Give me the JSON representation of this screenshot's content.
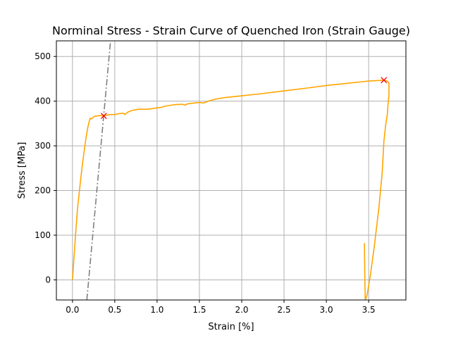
{
  "chart_data": {
    "type": "line",
    "title": "Norminal Stress - Strain Curve of Quenched Iron (Strain Gauge)",
    "xlabel": "Strain [%]",
    "ylabel": "Stress [MPa]",
    "xlim": [
      -0.19,
      3.94
    ],
    "ylim": [
      -45,
      535
    ],
    "xticks": [
      0.0,
      0.5,
      1.0,
      1.5,
      2.0,
      2.5,
      3.0,
      3.5
    ],
    "xtick_labels": [
      "0.0",
      "0.5",
      "1.0",
      "1.5",
      "2.0",
      "2.5",
      "3.0",
      "3.5"
    ],
    "yticks": [
      0,
      100,
      200,
      300,
      400,
      500
    ],
    "ytick_labels": [
      "0",
      "100",
      "200",
      "300",
      "400",
      "500"
    ],
    "grid": true,
    "series": [
      {
        "kind": "line",
        "color": "#ffa500",
        "style": "solid",
        "x": [
          0.0,
          0.02,
          0.04,
          0.06,
          0.08,
          0.1,
          0.12,
          0.14,
          0.16,
          0.18,
          0.2,
          0.21,
          0.22,
          0.24,
          0.26,
          0.3,
          0.35,
          0.38,
          0.45,
          0.5,
          0.55,
          0.6,
          0.62,
          0.65,
          0.7,
          0.75,
          0.8,
          0.9,
          1.0,
          1.05,
          1.1,
          1.2,
          1.3,
          1.33,
          1.36,
          1.4,
          1.45,
          1.5,
          1.55,
          1.58,
          1.62,
          1.7,
          1.8,
          2.0,
          2.2,
          2.5,
          2.8,
          3.0,
          3.2,
          3.4,
          3.5,
          3.6,
          3.68,
          3.72,
          3.74,
          3.74,
          3.73,
          3.72,
          3.7,
          3.68,
          3.66,
          3.62,
          3.57,
          3.52,
          3.48,
          3.46,
          3.455,
          3.45
        ],
        "y": [
          0,
          55,
          110,
          160,
          195,
          230,
          262,
          290,
          318,
          340,
          356,
          362,
          360,
          363,
          366,
          367,
          368,
          368,
          370,
          370,
          372,
          373,
          370,
          375,
          379,
          381,
          382,
          382,
          385,
          386,
          389,
          392,
          393,
          391,
          394,
          395,
          396,
          397,
          396,
          398,
          401,
          405,
          408,
          412,
          416,
          423,
          430,
          435,
          439,
          443,
          445,
          446,
          447,
          445,
          440,
          415,
          395,
          370,
          345,
          310,
          240,
          160,
          80,
          10,
          -35,
          -45,
          0,
          82
        ]
      },
      {
        "kind": "line",
        "color": "#808080",
        "style": "dashdot",
        "x": [
          0.17,
          0.45
        ],
        "y": [
          -45,
          535
        ]
      }
    ],
    "markers": [
      {
        "x": 0.37,
        "y": 367,
        "symbol": "x",
        "color": "#ff0000"
      },
      {
        "x": 3.68,
        "y": 447,
        "symbol": "x",
        "color": "#ff0000"
      }
    ]
  }
}
